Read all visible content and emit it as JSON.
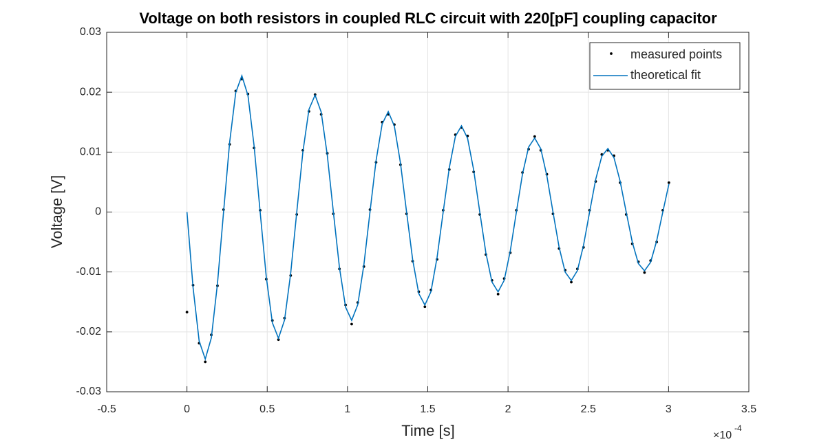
{
  "chart_data": {
    "type": "line",
    "title": "Voltage on both resistors in coupled RLC circuit with 220[pF] coupling capacitor",
    "x_label": "Time [s]",
    "y_label": "Voltage [V]",
    "x_multiplier": "×10",
    "x_exponent": "-4",
    "xlim": [
      -0.5,
      3.5
    ],
    "xticks": [
      -0.5,
      0,
      0.5,
      1,
      1.5,
      2,
      2.5,
      3,
      3.5
    ],
    "ylim": [
      -0.03,
      0.03
    ],
    "yticks": [
      -0.03,
      -0.02,
      -0.01,
      0,
      0.01,
      0.02,
      0.03
    ],
    "grid": true,
    "legend": "upper right",
    "x": [
      0,
      0.038,
      0.076,
      0.114,
      0.152,
      0.19,
      0.228,
      0.266,
      0.304,
      0.342,
      0.38,
      0.418,
      0.456,
      0.494,
      0.532,
      0.57,
      0.608,
      0.646,
      0.684,
      0.722,
      0.76,
      0.798,
      0.836,
      0.874,
      0.912,
      0.95,
      0.988,
      1.026,
      1.064,
      1.102,
      1.14,
      1.178,
      1.216,
      1.254,
      1.292,
      1.33,
      1.368,
      1.406,
      1.444,
      1.482,
      1.52,
      1.558,
      1.596,
      1.634,
      1.672,
      1.71,
      1.748,
      1.786,
      1.824,
      1.862,
      1.9,
      1.938,
      1.976,
      2.014,
      2.052,
      2.09,
      2.128,
      2.166,
      2.204,
      2.242,
      2.28,
      2.318,
      2.356,
      2.394,
      2.432,
      2.47,
      2.508,
      2.546,
      2.584,
      2.622,
      2.66,
      2.698,
      2.736,
      2.774,
      2.812,
      2.85,
      2.888,
      2.926,
      2.964,
      3.002
    ],
    "series": [
      {
        "name": "measured points",
        "type": "scatter",
        "color": "#000000",
        "values": [
          -0.0167,
          -0.0122,
          -0.0219,
          -0.025,
          -0.0205,
          -0.0123,
          0.0004,
          0.0113,
          0.0202,
          0.0222,
          0.0197,
          0.0107,
          0.0003,
          -0.0112,
          -0.0181,
          -0.0213,
          -0.0177,
          -0.0106,
          -0.0004,
          0.0103,
          0.0168,
          0.0196,
          0.0163,
          0.0098,
          -0.0003,
          -0.0095,
          -0.0155,
          -0.0187,
          -0.0151,
          -0.0091,
          0.0004,
          0.0083,
          0.015,
          0.0163,
          0.0146,
          0.0079,
          -0.0003,
          -0.0082,
          -0.0133,
          -0.0158,
          -0.013,
          -0.0079,
          0.0003,
          0.0071,
          0.0129,
          0.0141,
          0.0127,
          0.0067,
          -0.0004,
          -0.0071,
          -0.0114,
          -0.0137,
          -0.0111,
          -0.0068,
          0.0003,
          0.0066,
          0.0105,
          0.0126,
          0.0103,
          0.0063,
          -0.0003,
          -0.0061,
          -0.0097,
          -0.0117,
          -0.0095,
          -0.0059,
          0.0003,
          0.0051,
          0.0096,
          0.0103,
          0.0094,
          0.0049,
          -0.0004,
          -0.0053,
          -0.0083,
          -0.0101,
          -0.0081,
          -0.005,
          0.0003,
          0.0049
        ]
      },
      {
        "name": "theoretical fit",
        "type": "line",
        "color": "#0072BD",
        "values": [
          0,
          -0.01259,
          -0.02153,
          -0.02455,
          -0.02099,
          -0.01197,
          0,
          0.01167,
          0.01995,
          0.02275,
          0.01945,
          0.01109,
          0,
          -0.01081,
          -0.01848,
          -0.02107,
          -0.01802,
          -0.01027,
          0,
          0.01001,
          0.01713,
          0.01953,
          0.0167,
          0.00952,
          0,
          -0.00928,
          -0.01587,
          -0.01808,
          -0.01547,
          -0.00882,
          0,
          0.00859,
          0.0147,
          0.01676,
          0.01433,
          0.00817,
          0,
          -0.00796,
          -0.01361,
          -0.01552,
          -0.01328,
          -0.00757,
          0,
          0.00738,
          0.01262,
          0.01439,
          0.0123,
          0.00701,
          0,
          -0.00683,
          -0.01168,
          -0.01332,
          -0.0114,
          -0.0065,
          0,
          0.00633,
          0.01083,
          0.01235,
          0.01056,
          0.00602,
          0,
          -0.00586,
          -0.01003,
          -0.01143,
          -0.00978,
          -0.00558,
          0,
          0.00544,
          0.0093,
          0.0106,
          0.00906,
          0.00517,
          0,
          -0.00503,
          -0.00861,
          -0.00981,
          -0.00839,
          -0.00479,
          0,
          0.00466
        ]
      }
    ]
  }
}
